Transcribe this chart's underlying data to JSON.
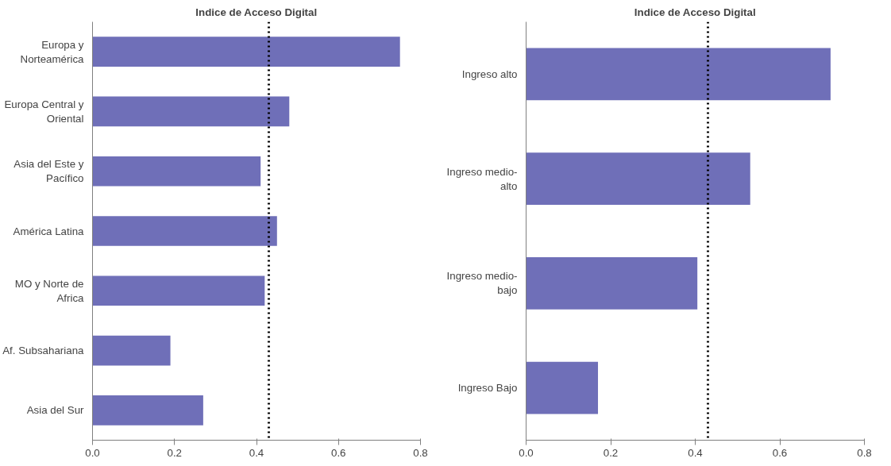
{
  "chart_data": [
    {
      "type": "bar",
      "orientation": "horizontal",
      "title": "Indice de Acceso Digital",
      "categories": [
        "Europa y Norteamérica",
        "Europa Central y Oriental",
        "Asia del Este y Pacífico",
        "América Latina",
        "MO y Norte de Africa",
        "Af. Subsahariana",
        "Asia del Sur"
      ],
      "values": [
        0.75,
        0.48,
        0.41,
        0.45,
        0.42,
        0.19,
        0.27
      ],
      "color": "#6f6fb8",
      "xlim": [
        0,
        0.8
      ],
      "xticks": [
        {
          "value": 0,
          "label": "0.0"
        },
        0.2,
        0.4,
        0.6,
        0.8
      ],
      "grid": false,
      "ref_lines": [
        {
          "axis": "x",
          "value": 0.43,
          "label": null,
          "color": "#000000",
          "line_style": "dotted"
        }
      ]
    },
    {
      "type": "bar",
      "orientation": "horizontal",
      "title": "Indice de Acceso Digital",
      "categories": [
        "Ingreso alto",
        "Ingreso medio-alto",
        "Ingreso medio-bajo",
        "Ingreso Bajo"
      ],
      "values": [
        0.72,
        0.53,
        0.405,
        0.17
      ],
      "color": "#6f6fb8",
      "xlim": [
        0,
        0.8
      ],
      "xticks": [
        {
          "value": 0,
          "label": "0.0"
        },
        0.2,
        0.4,
        0.6,
        0.8
      ],
      "grid": false,
      "ref_lines": [
        {
          "axis": "x",
          "value": 0.43,
          "label": null,
          "color": "#000000",
          "line_style": "dotted"
        }
      ]
    }
  ]
}
